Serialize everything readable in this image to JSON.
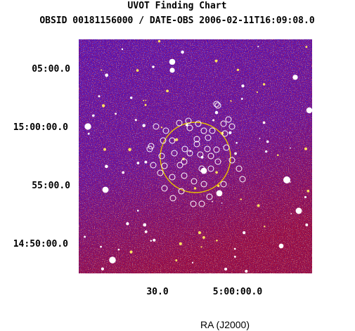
{
  "chart_data": {
    "type": "image",
    "title": "UVOT Finding Chart",
    "subtitle": "OBSID 00181156000 / DATE-OBS 2006-02-11T16:09:08.0",
    "xlabel": "RA (J2000)",
    "ylabel": "",
    "x_ticks": [
      "30.0",
      "5:00:00.0"
    ],
    "y_ticks": [
      "05:00.0",
      "15:00:00.0",
      "55:00.0",
      "14:50:00.0"
    ],
    "grid": false,
    "colormap": [
      "#1a10e0",
      "#e01010",
      "#ffffff"
    ],
    "error_circle_color": "#e8c000",
    "source_marker_color": "#ffffff",
    "source_count": 52
  }
}
